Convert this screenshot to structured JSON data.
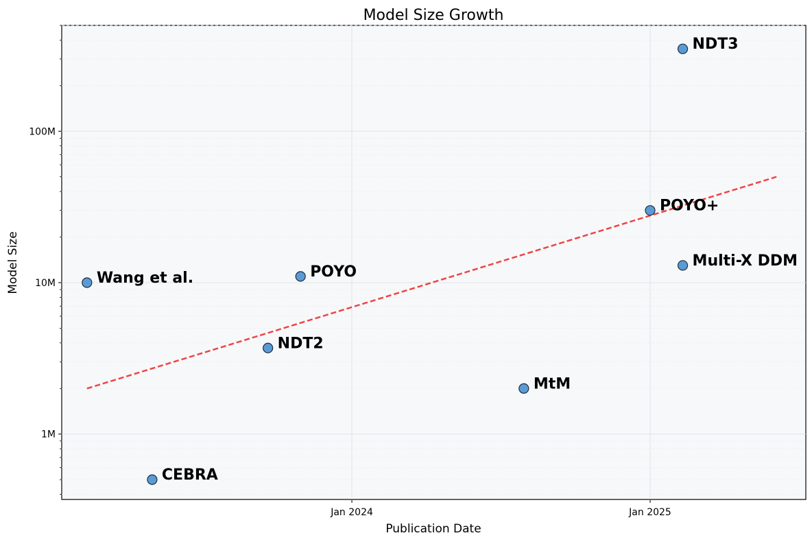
{
  "chart_data": {
    "type": "scatter",
    "title": "Model Size Growth",
    "xlabel": "Publication Date",
    "ylabel": "Model Size",
    "y_scale": "log",
    "ylim": [
      370000,
      500000000
    ],
    "xlim": [
      "2023-01-10",
      "2025-07-11"
    ],
    "x_ticks": [
      {
        "value": "2024-01-01",
        "label": "Jan 2024"
      },
      {
        "value": "2025-01-01",
        "label": "Jan 2025"
      }
    ],
    "y_ticks": [
      {
        "value": 1000000,
        "label": "1M"
      },
      {
        "value": 10000000,
        "label": "10M"
      },
      {
        "value": 100000000,
        "label": "100M"
      }
    ],
    "grid": true,
    "points": [
      {
        "label": "Wang et al.",
        "date": "2023-02-10",
        "value": 10000000
      },
      {
        "label": "CEBRA",
        "date": "2023-05-01",
        "value": 500000
      },
      {
        "label": "NDT2",
        "date": "2023-09-20",
        "value": 3700000
      },
      {
        "label": "POYO",
        "date": "2023-10-30",
        "value": 11000000
      },
      {
        "label": "MtM",
        "date": "2024-07-30",
        "value": 2000000
      },
      {
        "label": "POYO+",
        "date": "2025-01-01",
        "value": 30000000
      },
      {
        "label": "Multi-X DDM",
        "date": "2025-02-10",
        "value": 13000000
      },
      {
        "label": "NDT3",
        "date": "2025-02-10",
        "value": 350000000
      }
    ],
    "trend_line": {
      "style": "dashed",
      "start": {
        "date": "2023-02-10",
        "value": 2000000
      },
      "end": {
        "date": "2025-06-05",
        "value": 50000000
      }
    },
    "colors": {
      "point_fill": "#5b9bd5",
      "point_edge": "#1f2d3d",
      "trend": "#ef4444",
      "plot_bg": "#f7f8fa",
      "grid_major": "#e1e3e6",
      "grid_minor": "#eceef0"
    }
  }
}
